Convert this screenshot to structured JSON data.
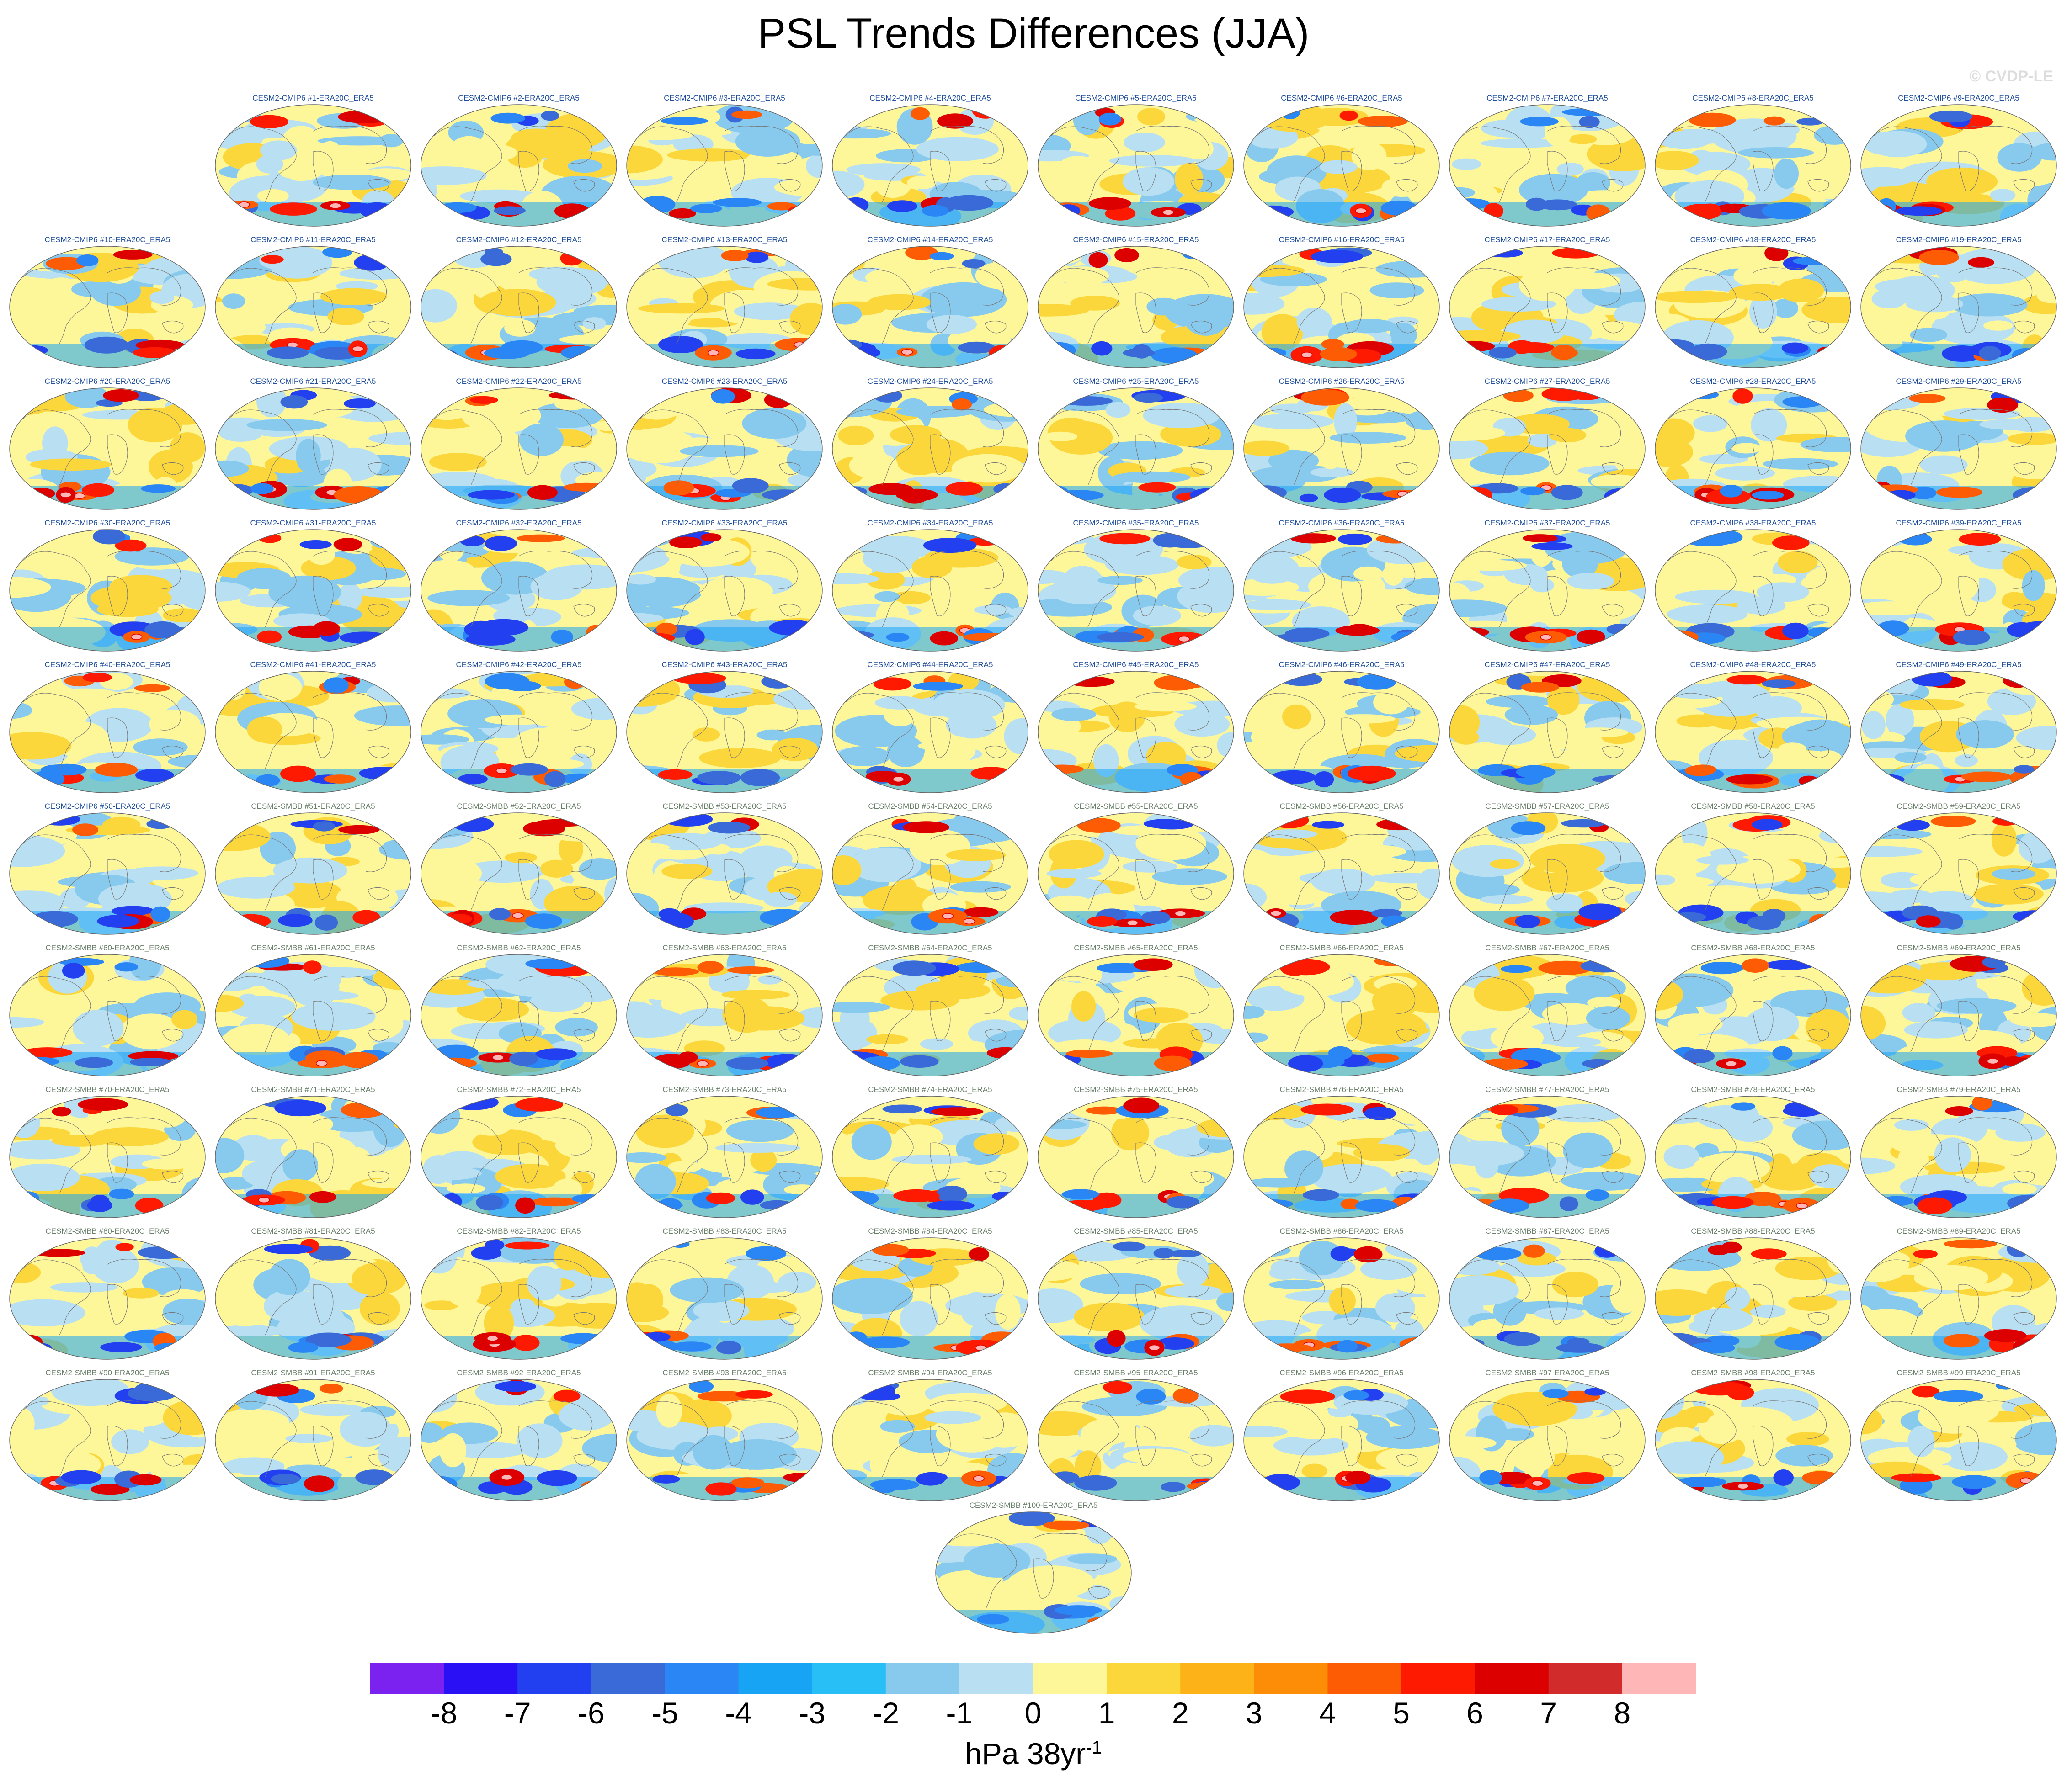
{
  "title": "PSL Trends Differences (JJA)",
  "watermark": "© CVDP-LE",
  "colors": {
    "cmip6_label": "#1f4e9c",
    "smbb_label": "#6a7f6a",
    "coast": "#777777"
  },
  "chart_data": {
    "type": "contour-map-panels",
    "title": "PSL Trends Differences (JJA)",
    "variable": "PSL",
    "season": "JJA",
    "reference": "ERA20C_ERA5",
    "projection": "robinson (global)",
    "panel_count": 100,
    "panel_labels": [
      "CESM2-CMIP6 #1-ERA20C_ERA5",
      "CESM2-CMIP6 #2-ERA20C_ERA5",
      "CESM2-CMIP6 #3-ERA20C_ERA5",
      "CESM2-CMIP6 #4-ERA20C_ERA5",
      "CESM2-CMIP6 #5-ERA20C_ERA5",
      "CESM2-CMIP6 #6-ERA20C_ERA5",
      "CESM2-CMIP6 #7-ERA20C_ERA5",
      "CESM2-CMIP6 #8-ERA20C_ERA5",
      "CESM2-CMIP6 #9-ERA20C_ERA5",
      "CESM2-CMIP6 #10-ERA20C_ERA5",
      "CESM2-CMIP6 #11-ERA20C_ERA5",
      "CESM2-CMIP6 #12-ERA20C_ERA5",
      "CESM2-CMIP6 #13-ERA20C_ERA5",
      "CESM2-CMIP6 #14-ERA20C_ERA5",
      "CESM2-CMIP6 #15-ERA20C_ERA5",
      "CESM2-CMIP6 #16-ERA20C_ERA5",
      "CESM2-CMIP6 #17-ERA20C_ERA5",
      "CESM2-CMIP6 #18-ERA20C_ERA5",
      "CESM2-CMIP6 #19-ERA20C_ERA5",
      "CESM2-CMIP6 #20-ERA20C_ERA5",
      "CESM2-CMIP6 #21-ERA20C_ERA5",
      "CESM2-CMIP6 #22-ERA20C_ERA5",
      "CESM2-CMIP6 #23-ERA20C_ERA5",
      "CESM2-CMIP6 #24-ERA20C_ERA5",
      "CESM2-CMIP6 #25-ERA20C_ERA5",
      "CESM2-CMIP6 #26-ERA20C_ERA5",
      "CESM2-CMIP6 #27-ERA20C_ERA5",
      "CESM2-CMIP6 #28-ERA20C_ERA5",
      "CESM2-CMIP6 #29-ERA20C_ERA5",
      "CESM2-CMIP6 #30-ERA20C_ERA5",
      "CESM2-CMIP6 #31-ERA20C_ERA5",
      "CESM2-CMIP6 #32-ERA20C_ERA5",
      "CESM2-CMIP6 #33-ERA20C_ERA5",
      "CESM2-CMIP6 #34-ERA20C_ERA5",
      "CESM2-CMIP6 #35-ERA20C_ERA5",
      "CESM2-CMIP6 #36-ERA20C_ERA5",
      "CESM2-CMIP6 #37-ERA20C_ERA5",
      "CESM2-CMIP6 #38-ERA20C_ERA5",
      "CESM2-CMIP6 #39-ERA20C_ERA5",
      "CESM2-CMIP6 #40-ERA20C_ERA5",
      "CESM2-CMIP6 #41-ERA20C_ERA5",
      "CESM2-CMIP6 #42-ERA20C_ERA5",
      "CESM2-CMIP6 #43-ERA20C_ERA5",
      "CESM2-CMIP6 #44-ERA20C_ERA5",
      "CESM2-CMIP6 #45-ERA20C_ERA5",
      "CESM2-CMIP6 #46-ERA20C_ERA5",
      "CESM2-CMIP6 #47-ERA20C_ERA5",
      "CESM2-CMIP6 #48-ERA20C_ERA5",
      "CESM2-CMIP6 #49-ERA20C_ERA5",
      "CESM2-CMIP6 #50-ERA20C_ERA5",
      "CESM2-SMBB #51-ERA20C_ERA5",
      "CESM2-SMBB #52-ERA20C_ERA5",
      "CESM2-SMBB #53-ERA20C_ERA5",
      "CESM2-SMBB #54-ERA20C_ERA5",
      "CESM2-SMBB #55-ERA20C_ERA5",
      "CESM2-SMBB #56-ERA20C_ERA5",
      "CESM2-SMBB #57-ERA20C_ERA5",
      "CESM2-SMBB #58-ERA20C_ERA5",
      "CESM2-SMBB #59-ERA20C_ERA5",
      "CESM2-SMBB #60-ERA20C_ERA5",
      "CESM2-SMBB #61-ERA20C_ERA5",
      "CESM2-SMBB #62-ERA20C_ERA5",
      "CESM2-SMBB #63-ERA20C_ERA5",
      "CESM2-SMBB #64-ERA20C_ERA5",
      "CESM2-SMBB #65-ERA20C_ERA5",
      "CESM2-SMBB #66-ERA20C_ERA5",
      "CESM2-SMBB #67-ERA20C_ERA5",
      "CESM2-SMBB #68-ERA20C_ERA5",
      "CESM2-SMBB #69-ERA20C_ERA5",
      "CESM2-SMBB #70-ERA20C_ERA5",
      "CESM2-SMBB #71-ERA20C_ERA5",
      "CESM2-SMBB #72-ERA20C_ERA5",
      "CESM2-SMBB #73-ERA20C_ERA5",
      "CESM2-SMBB #74-ERA20C_ERA5",
      "CESM2-SMBB #75-ERA20C_ERA5",
      "CESM2-SMBB #76-ERA20C_ERA5",
      "CESM2-SMBB #77-ERA20C_ERA5",
      "CESM2-SMBB #78-ERA20C_ERA5",
      "CESM2-SMBB #79-ERA20C_ERA5",
      "CESM2-SMBB #80-ERA20C_ERA5",
      "CESM2-SMBB #81-ERA20C_ERA5",
      "CESM2-SMBB #82-ERA20C_ERA5",
      "CESM2-SMBB #83-ERA20C_ERA5",
      "CESM2-SMBB #84-ERA20C_ERA5",
      "CESM2-SMBB #85-ERA20C_ERA5",
      "CESM2-SMBB #86-ERA20C_ERA5",
      "CESM2-SMBB #87-ERA20C_ERA5",
      "CESM2-SMBB #88-ERA20C_ERA5",
      "CESM2-SMBB #89-ERA20C_ERA5",
      "CESM2-SMBB #90-ERA20C_ERA5",
      "CESM2-SMBB #91-ERA20C_ERA5",
      "CESM2-SMBB #92-ERA20C_ERA5",
      "CESM2-SMBB #93-ERA20C_ERA5",
      "CESM2-SMBB #94-ERA20C_ERA5",
      "CESM2-SMBB #95-ERA20C_ERA5",
      "CESM2-SMBB #96-ERA20C_ERA5",
      "CESM2-SMBB #97-ERA20C_ERA5",
      "CESM2-SMBB #98-ERA20C_ERA5",
      "CESM2-SMBB #99-ERA20C_ERA5",
      "CESM2-SMBB #100-ERA20C_ERA5"
    ],
    "colorbar": {
      "levels": [
        -8,
        -7,
        -6,
        -5,
        -4,
        -3,
        -2,
        -1,
        0,
        1,
        2,
        3,
        4,
        5,
        6,
        7,
        8
      ],
      "level_labels": [
        "-8",
        "-7",
        "-6",
        "-5",
        "-4",
        "-3",
        "-2",
        "-1",
        "0",
        "1",
        "2",
        "3",
        "4",
        "5",
        "6",
        "7",
        "8"
      ],
      "colors": [
        "#7b22f0",
        "#2a10f5",
        "#2240f0",
        "#3a6ad8",
        "#2b86f5",
        "#18a4f5",
        "#28bff7",
        "#88c9ee",
        "#b9e0f2",
        "#fdf79a",
        "#fcd73b",
        "#fdb317",
        "#fd8c06",
        "#fd5c04",
        "#fd1a00",
        "#dc0000",
        "#d22b2b",
        "#ffb6b6"
      ],
      "units_text": "hPa 38yr",
      "units_exponent": "-1"
    }
  }
}
